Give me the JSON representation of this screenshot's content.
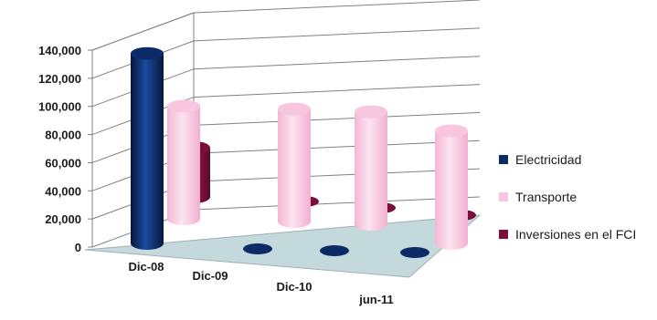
{
  "chart_data": {
    "type": "bar",
    "title": "",
    "xlabel": "",
    "ylabel": "",
    "categories": [
      "Dic-08",
      "Dic-09",
      "Dic-10",
      "jun-11"
    ],
    "ylim": [
      0,
      140000
    ],
    "yticks": [
      0,
      20000,
      40000,
      60000,
      80000,
      100000,
      120000,
      140000
    ],
    "ytick_labels": [
      "0",
      "20,000",
      "40,000",
      "60,000",
      "80,000",
      "100,000",
      "120,000",
      "140,000"
    ],
    "grid": true,
    "legend_position": "right",
    "series": [
      {
        "name": "Electricidad",
        "color": "#0b2a66",
        "values": [
          135000,
          0,
          0,
          0
        ]
      },
      {
        "name": "Transporte",
        "color": "#f9c6df",
        "values": [
          80000,
          80000,
          80000,
          80000
        ]
      },
      {
        "name": "Inversiones en el FCI",
        "color": "#7a0f3c",
        "values": [
          35000,
          0,
          0,
          0
        ]
      }
    ]
  }
}
